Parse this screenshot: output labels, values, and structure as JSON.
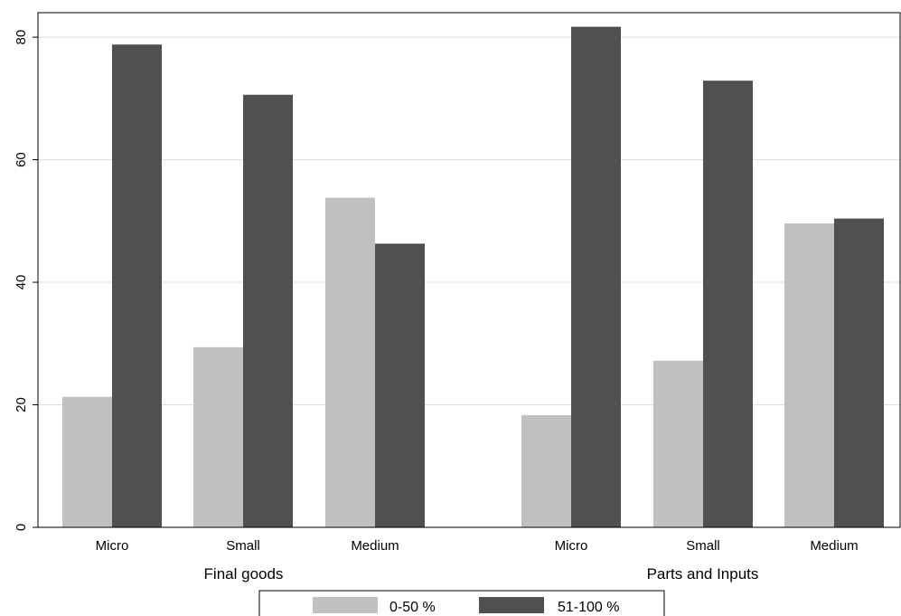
{
  "chart_data": {
    "type": "bar",
    "title": "",
    "xlabel": "",
    "ylabel": "",
    "ylim": [
      0,
      84
    ],
    "yticks": [
      0,
      20,
      40,
      60,
      80
    ],
    "grid": true,
    "groups": [
      {
        "label": "Final goods",
        "categories": [
          "Micro",
          "Small",
          "Medium"
        ]
      },
      {
        "label": "Parts and Inputs",
        "categories": [
          "Micro",
          "Small",
          "Medium"
        ]
      }
    ],
    "series": [
      {
        "name": "0-50 %",
        "color": "#c0c0c0",
        "values": [
          21.3,
          29.4,
          53.8,
          18.3,
          27.2,
          49.6
        ]
      },
      {
        "name": "51-100 %",
        "color": "#505050",
        "values": [
          78.8,
          70.6,
          46.3,
          81.7,
          72.9,
          50.4
        ]
      }
    ],
    "legend_position": "bottom"
  }
}
